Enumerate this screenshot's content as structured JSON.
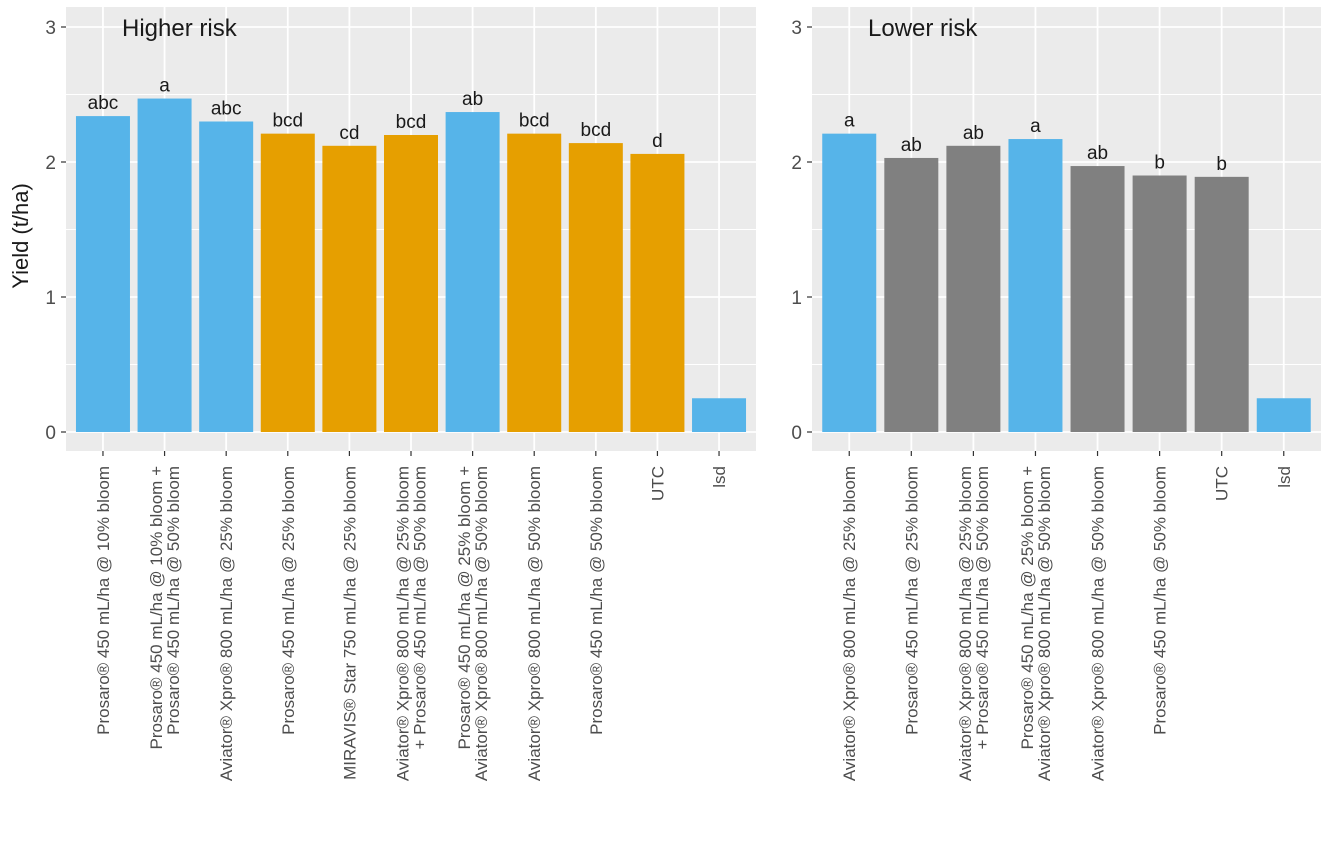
{
  "chart_data": {
    "type": "bar",
    "ylabel": "Yield (t/ha)",
    "ylim": [
      0,
      3
    ],
    "yticks": [
      "0",
      "1",
      "2",
      "3"
    ],
    "grid": true,
    "legend": "none",
    "colors": {
      "blue": "#56b4e9",
      "orange": "#e69f00",
      "grey": "#808080",
      "panel_bg": "#ebebeb",
      "grid": "#ffffff"
    },
    "panels": [
      {
        "title": "Higher risk",
        "bars": [
          {
            "category": "Prosaro® 450 mL/ha @ 10% bloom",
            "value": 2.34,
            "label": "abc",
            "color": "blue"
          },
          {
            "category": "Prosaro® 450 mL/ha @ 10% bloom +\nProsaro® 450 mL/ha @ 50% bloom",
            "value": 2.47,
            "label": "a",
            "color": "blue"
          },
          {
            "category": "Aviator® Xpro® 800 mL/ha @ 25% bloom",
            "value": 2.3,
            "label": "abc",
            "color": "blue"
          },
          {
            "category": "Prosaro® 450 mL/ha @ 25% bloom",
            "value": 2.21,
            "label": "bcd",
            "color": "orange"
          },
          {
            "category": "MIRAVIS® Star 750 mL/ha @ 25% bloom",
            "value": 2.12,
            "label": "cd",
            "color": "orange"
          },
          {
            "category": "Aviator® Xpro® 800 mL/ha @ 25% bloom\n+ Prosaro® 450 mL/ha @ 50% bloom",
            "value": 2.2,
            "label": "bcd",
            "color": "orange"
          },
          {
            "category": "Prosaro® 450 mL/ha @ 25% bloom +\nAviator® Xpro® 800 mL/ha @ 50% bloom",
            "value": 2.37,
            "label": "ab",
            "color": "blue"
          },
          {
            "category": "Aviator® Xpro® 800 mL/ha @ 50% bloom",
            "value": 2.21,
            "label": "bcd",
            "color": "orange"
          },
          {
            "category": "Prosaro® 450 mL/ha @ 50% bloom",
            "value": 2.14,
            "label": "bcd",
            "color": "orange"
          },
          {
            "category": "UTC",
            "value": 2.06,
            "label": "d",
            "color": "orange"
          },
          {
            "category": "lsd",
            "value": 0.25,
            "label": "",
            "color": "blue"
          }
        ]
      },
      {
        "title": "Lower risk",
        "bars": [
          {
            "category": "Aviator® Xpro® 800 mL/ha @ 25% bloom",
            "value": 2.21,
            "label": "a",
            "color": "blue"
          },
          {
            "category": "Prosaro® 450 mL/ha @ 25% bloom",
            "value": 2.03,
            "label": "ab",
            "color": "grey"
          },
          {
            "category": "Aviator® Xpro® 800 mL/ha @ 25% bloom\n+ Prosaro® 450 mL/ha @ 50% bloom",
            "value": 2.12,
            "label": "ab",
            "color": "grey"
          },
          {
            "category": "Prosaro® 450 mL/ha @ 25% bloom +\nAviator® Xpro® 800 mL/ha @ 50% bloom",
            "value": 2.17,
            "label": "a",
            "color": "blue"
          },
          {
            "category": "Aviator® Xpro® 800 mL/ha @ 50% bloom",
            "value": 1.97,
            "label": "ab",
            "color": "grey"
          },
          {
            "category": "Prosaro® 450 mL/ha @ 50% bloom",
            "value": 1.9,
            "label": "b",
            "color": "grey"
          },
          {
            "category": "UTC",
            "value": 1.89,
            "label": "b",
            "color": "grey"
          },
          {
            "category": "lsd",
            "value": 0.25,
            "label": "",
            "color": "blue"
          }
        ]
      }
    ]
  }
}
